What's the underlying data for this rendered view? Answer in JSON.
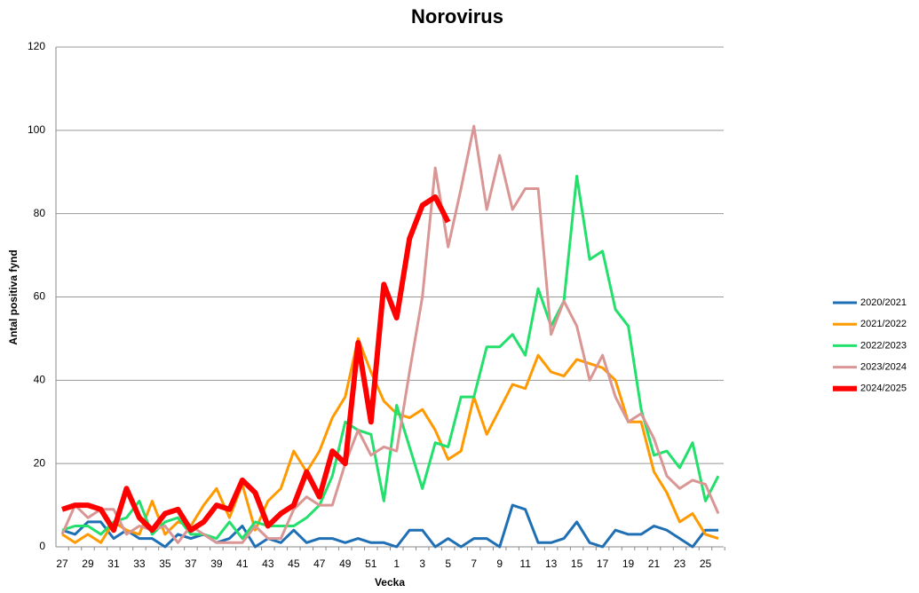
{
  "chart_data": {
    "type": "line",
    "title": "Norovirus",
    "x_label": "Vecka",
    "y_label": "Antal positiva fynd",
    "categories": [
      "27",
      null,
      "29",
      null,
      "31",
      null,
      "33",
      null,
      "35",
      null,
      "37",
      null,
      "39",
      null,
      "41",
      null,
      "43",
      null,
      "45",
      null,
      "47",
      null,
      "49",
      null,
      "51",
      null,
      "1",
      null,
      "3",
      null,
      "5",
      null,
      "7",
      null,
      "9",
      null,
      "11",
      null,
      "13",
      null,
      "15",
      null,
      "17",
      null,
      "19",
      null,
      "21",
      null,
      "23",
      null,
      "25",
      null
    ],
    "series": [
      {
        "name": "2020/2021",
        "color": "#1f6fb5",
        "values": [
          4,
          3,
          6,
          6,
          2,
          4,
          2,
          2,
          0,
          3,
          2,
          3,
          1,
          2,
          5,
          0,
          2,
          1,
          4,
          1,
          2,
          2,
          1,
          2,
          1,
          1,
          0,
          4,
          4,
          0,
          2,
          0,
          2,
          2,
          0,
          10,
          9,
          1,
          1,
          2,
          6,
          1,
          0,
          4,
          3,
          3,
          5,
          4,
          2,
          0,
          4,
          4
        ]
      },
      {
        "name": "2021/2022",
        "color": "#ff9900",
        "values": [
          3,
          1,
          3,
          1,
          6,
          4,
          3,
          11,
          3,
          6,
          5,
          10,
          14,
          7,
          15,
          4,
          11,
          14,
          23,
          18,
          23,
          31,
          36,
          50,
          42,
          35,
          32,
          31,
          33,
          28,
          21,
          23,
          36,
          27,
          33,
          39,
          38,
          46,
          42,
          41,
          45,
          44,
          43,
          40,
          30,
          30,
          18,
          13,
          6,
          8,
          3,
          2
        ]
      },
      {
        "name": "2022/2023",
        "color": "#22e06b",
        "values": [
          4,
          5,
          5,
          3,
          6,
          7,
          11,
          3,
          6,
          7,
          3,
          3,
          2,
          6,
          2,
          6,
          5,
          5,
          5,
          7,
          10,
          17,
          30,
          28,
          27,
          11,
          34,
          24,
          14,
          25,
          24,
          36,
          36,
          48,
          48,
          51,
          46,
          62,
          53,
          59,
          89,
          69,
          71,
          57,
          53,
          33,
          22,
          23,
          19,
          25,
          11,
          17
        ]
      },
      {
        "name": "2023/2024",
        "color": "#d99694",
        "values": [
          3,
          10,
          7,
          9,
          9,
          3,
          5,
          4,
          5,
          1,
          5,
          3,
          1,
          1,
          1,
          5,
          2,
          2,
          9,
          12,
          10,
          10,
          20,
          28,
          22,
          24,
          23,
          42,
          60,
          91,
          72,
          86,
          101,
          81,
          94,
          81,
          86,
          86,
          51,
          59,
          53,
          40,
          46,
          36,
          30,
          32,
          26,
          17,
          14,
          16,
          15,
          8
        ]
      },
      {
        "name": "2024/2025",
        "color": "#ff0000",
        "values": [
          9,
          10,
          10,
          9,
          4,
          14,
          7,
          4,
          8,
          9,
          4,
          6,
          10,
          9,
          16,
          13,
          5,
          8,
          10,
          18,
          12,
          23,
          20,
          49,
          30,
          63,
          55,
          74,
          82,
          84,
          78,
          null,
          null,
          null,
          null,
          null,
          null,
          null,
          null,
          null,
          null,
          null,
          null,
          null,
          null,
          null,
          null,
          null,
          null,
          null,
          null,
          null
        ]
      }
    ],
    "ylim": [
      0,
      120
    ],
    "yticks": [
      0,
      20,
      40,
      60,
      80,
      100,
      120
    ],
    "grid": true,
    "legend": "right"
  }
}
